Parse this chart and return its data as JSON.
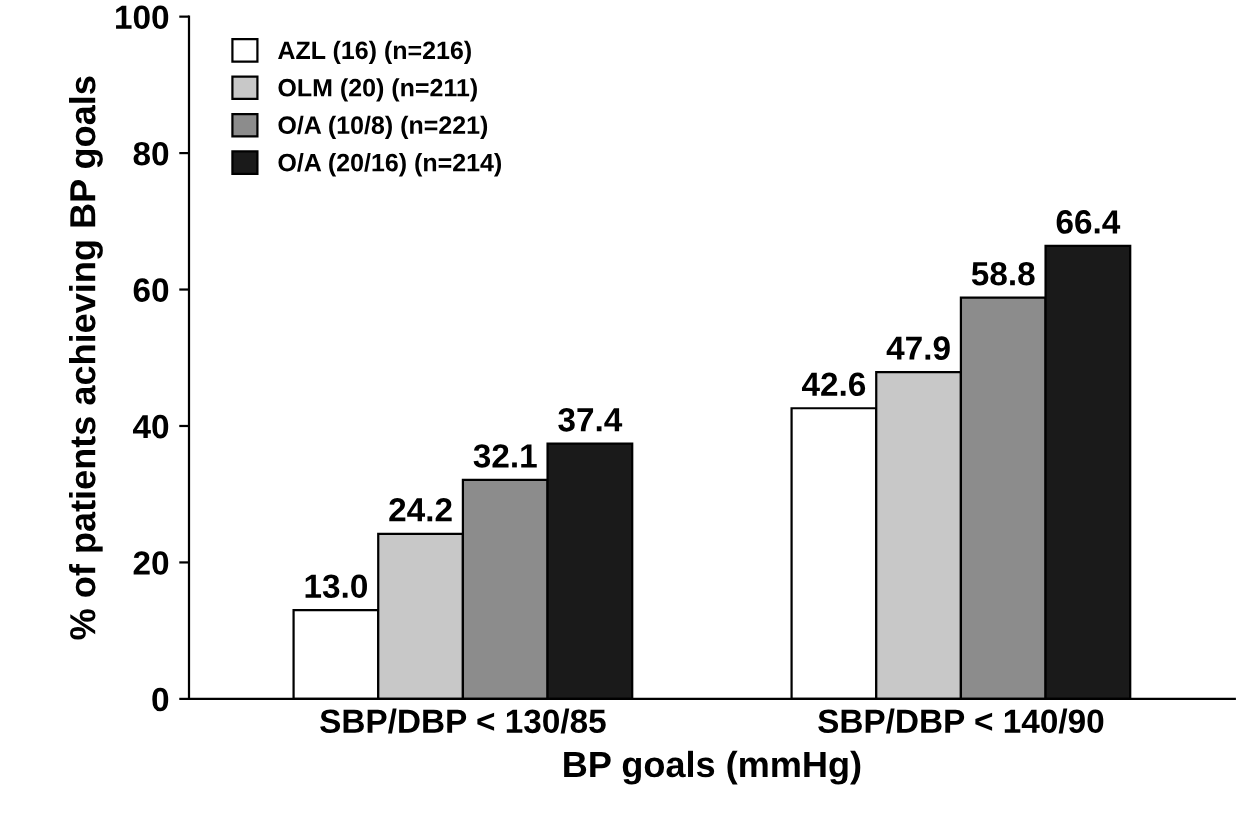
{
  "chart_data": {
    "type": "bar",
    "categories": [
      "SBP/DBP < 130/85",
      "SBP/DBP < 140/90"
    ],
    "series": [
      {
        "name": "AZL (16) (n=216)",
        "color": "#ffffff",
        "values": [
          13.0,
          42.6
        ],
        "value_labels": [
          "13.0",
          "42.6"
        ]
      },
      {
        "name": "OLM (20) (n=211)",
        "color": "#c8c8c8",
        "values": [
          24.2,
          47.9
        ],
        "value_labels": [
          "24.2",
          "47.9"
        ]
      },
      {
        "name": "O/A (10/8) (n=221)",
        "color": "#8c8c8c",
        "values": [
          32.1,
          58.8
        ],
        "value_labels": [
          "32.1",
          "58.8"
        ]
      },
      {
        "name": "O/A (20/16) (n=214)",
        "color": "#1a1a1a",
        "values": [
          37.4,
          66.4
        ],
        "value_labels": [
          "37.4",
          "66.4"
        ]
      }
    ],
    "xlabel": "BP goals (mmHg)",
    "ylabel": "% of patients achieving BP goals",
    "ylim": [
      0,
      100
    ],
    "yticks": [
      0,
      20,
      40,
      60,
      80,
      100
    ],
    "grid": false,
    "legend": "top left"
  }
}
